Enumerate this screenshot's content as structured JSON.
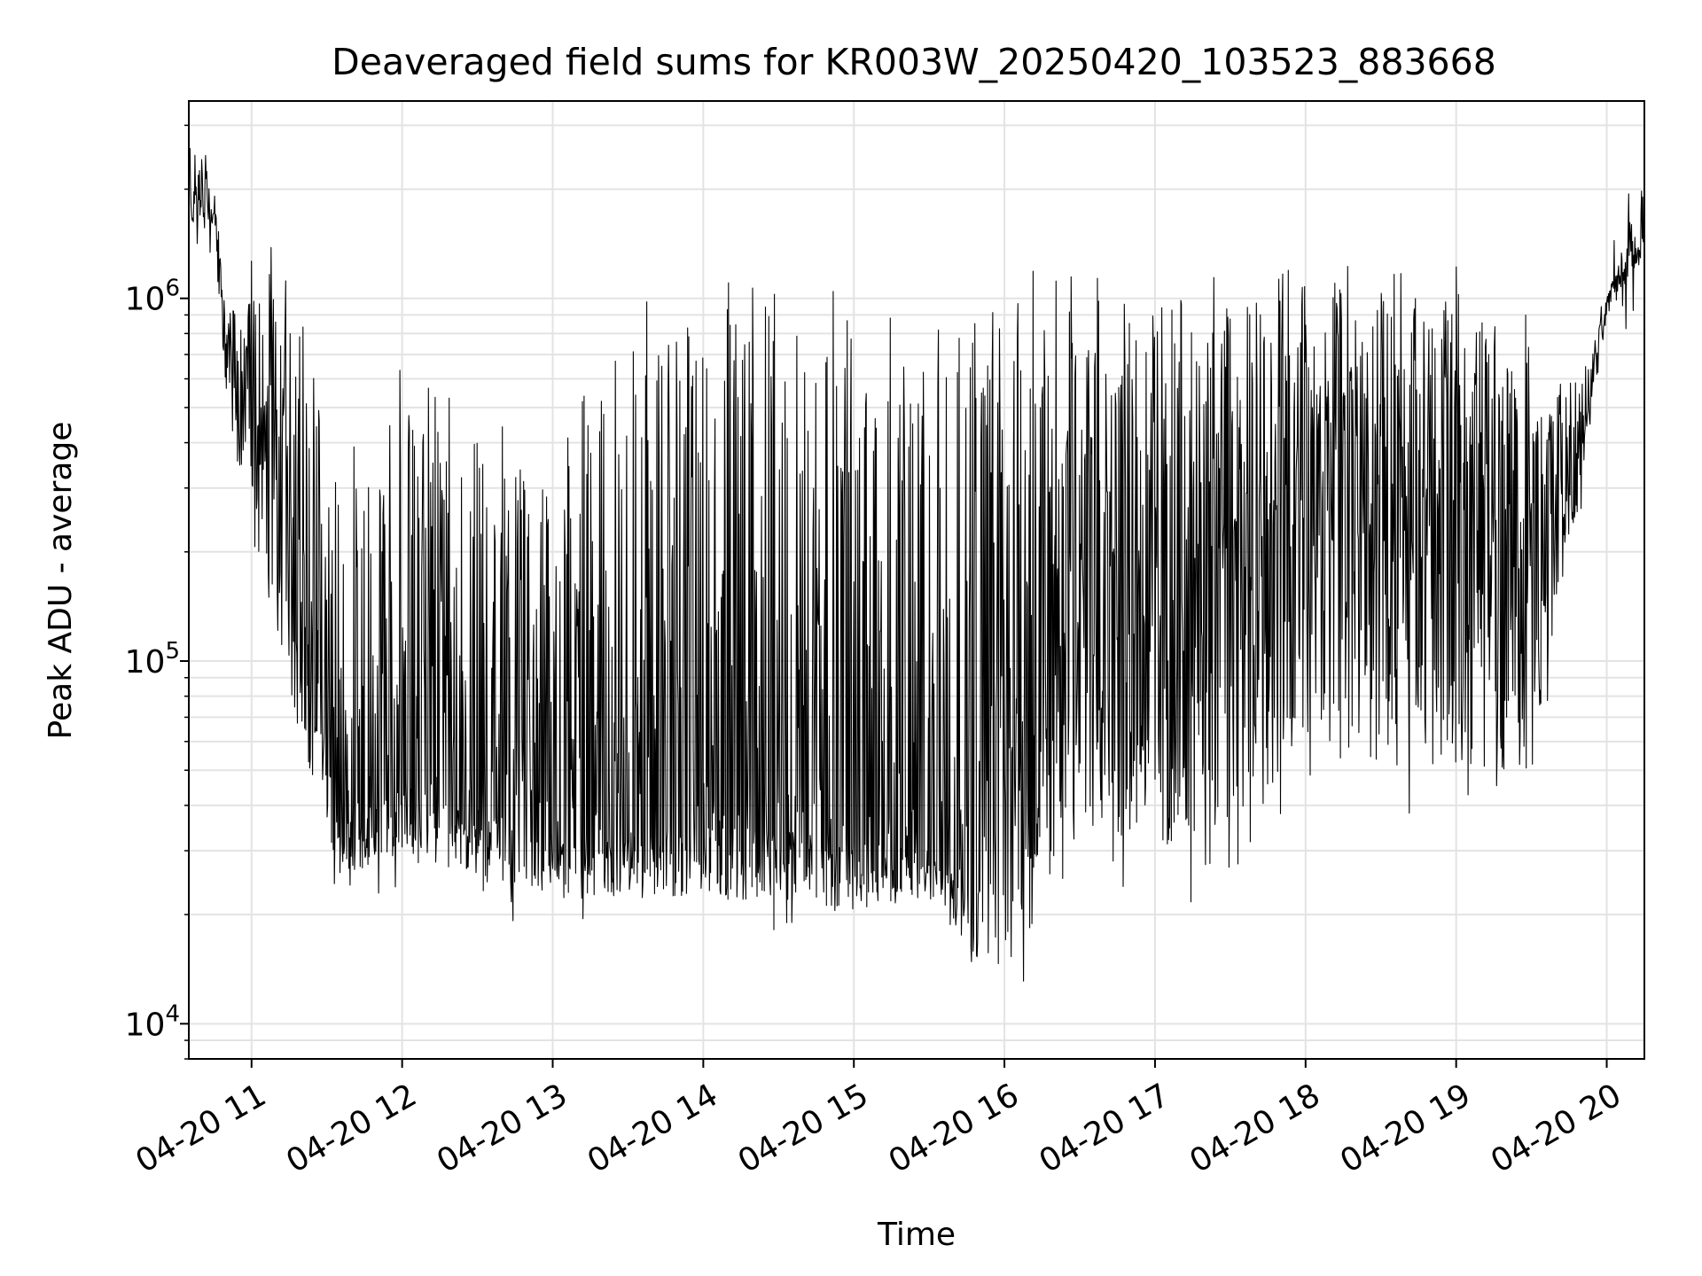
{
  "chart_data": {
    "type": "line",
    "title": "Deaveraged field sums for KR003W_20250420_103523_883668",
    "xlabel": "Time",
    "ylabel": "Peak ADU - average",
    "yscale": "log",
    "ylim": [
      8000,
      3500000
    ],
    "xlim": [
      "2025-04-20 10:35",
      "2025-04-20 20:15"
    ],
    "grid": true,
    "line_color": "#000000",
    "x_ticks": [
      {
        "label": "04-20 11",
        "time": "2025-04-20 11:00"
      },
      {
        "label": "04-20 12",
        "time": "2025-04-20 12:00"
      },
      {
        "label": "04-20 13",
        "time": "2025-04-20 13:00"
      },
      {
        "label": "04-20 14",
        "time": "2025-04-20 14:00"
      },
      {
        "label": "04-20 15",
        "time": "2025-04-20 15:00"
      },
      {
        "label": "04-20 16",
        "time": "2025-04-20 16:00"
      },
      {
        "label": "04-20 17",
        "time": "2025-04-20 17:00"
      },
      {
        "label": "04-20 18",
        "time": "2025-04-20 18:00"
      },
      {
        "label": "04-20 19",
        "time": "2025-04-20 19:00"
      },
      {
        "label": "04-20 20",
        "time": "2025-04-20 20:00"
      }
    ],
    "y_ticks": [
      {
        "base": "10",
        "exp": "4",
        "value": 10000
      },
      {
        "base": "10",
        "exp": "5",
        "value": 100000
      },
      {
        "base": "10",
        "exp": "6",
        "value": 1000000
      }
    ],
    "envelope": {
      "time": [
        "2025-04-20 10:35",
        "2025-04-20 10:45",
        "2025-04-20 10:50",
        "2025-04-20 11:05",
        "2025-04-20 11:20",
        "2025-04-20 11:35",
        "2025-04-20 12:00",
        "2025-04-20 12:30",
        "2025-04-20 13:00",
        "2025-04-20 13:30",
        "2025-04-20 14:00",
        "2025-04-20 14:30",
        "2025-04-20 15:00",
        "2025-04-20 15:30",
        "2025-04-20 15:50",
        "2025-04-20 16:00",
        "2025-04-20 16:30",
        "2025-04-20 17:00",
        "2025-04-20 17:30",
        "2025-04-20 18:00",
        "2025-04-20 18:30",
        "2025-04-20 19:00",
        "2025-04-20 19:30",
        "2025-04-20 19:50",
        "2025-04-20 20:00",
        "2025-04-20 20:15"
      ],
      "high": [
        2800000,
        2100000,
        900000,
        1100000,
        900000,
        300000,
        500000,
        400000,
        300000,
        800000,
        850000,
        900000,
        800000,
        600000,
        800000,
        900000,
        950000,
        1000000,
        950000,
        1100000,
        1000000,
        1000000,
        800000,
        600000,
        1000000,
        2200000
      ],
      "low": [
        1500000,
        1600000,
        500000,
        150000,
        60000,
        25000,
        30000,
        25000,
        22000,
        22000,
        22000,
        22000,
        20000,
        22000,
        15000,
        14000,
        30000,
        30000,
        25000,
        60000,
        50000,
        50000,
        50000,
        300000,
        900000,
        1300000
      ],
      "typical": [
        1900000,
        1800000,
        700000,
        400000,
        150000,
        35000,
        45000,
        40000,
        32000,
        33000,
        35000,
        35000,
        32000,
        30000,
        25000,
        60000,
        300000,
        200000,
        150000,
        400000,
        400000,
        350000,
        200000,
        400000,
        1000000,
        1500000
      ]
    }
  }
}
